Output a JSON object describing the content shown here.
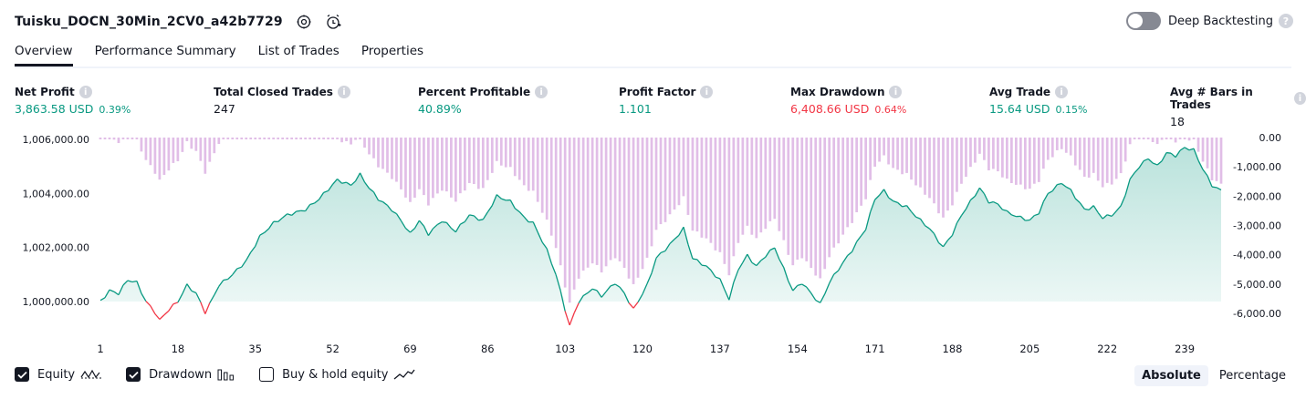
{
  "header": {
    "title": "Tuisku_DOCN_30Min_2CV0_a42b7729",
    "deep_backtesting_label": "Deep Backtesting",
    "help_glyph": "?"
  },
  "tabs": [
    {
      "label": "Overview",
      "active": true
    },
    {
      "label": "Performance Summary",
      "active": false
    },
    {
      "label": "List of Trades",
      "active": false
    },
    {
      "label": "Properties",
      "active": false
    }
  ],
  "metrics": [
    {
      "label": "Net Profit",
      "value": "3,863.58 USD",
      "pct": "0.39%",
      "color": "green"
    },
    {
      "label": "Total Closed Trades",
      "value": "247",
      "pct": "",
      "color": "dark"
    },
    {
      "label": "Percent Profitable",
      "value": "40.89%",
      "pct": "",
      "color": "green"
    },
    {
      "label": "Profit Factor",
      "value": "1.101",
      "pct": "",
      "color": "green"
    },
    {
      "label": "Max Drawdown",
      "value": "6,408.66 USD",
      "pct": "0.64%",
      "color": "red"
    },
    {
      "label": "Avg Trade",
      "value": "15.64 USD",
      "pct": "0.15%",
      "color": "green"
    },
    {
      "label": "Avg # Bars in Trades",
      "value": "18",
      "pct": "",
      "color": "dark"
    }
  ],
  "info_glyph": "i",
  "chart_data": {
    "type": "line",
    "equity_axis_labels": [
      "1,006,000.00",
      "1,004,000.00",
      "1,002,000.00",
      "1,000,000.00"
    ],
    "equity_axis_values": [
      1006000,
      1004000,
      1002000,
      1000000
    ],
    "drawdown_axis_labels": [
      "0.00",
      "-1,000.00",
      "-2,000.00",
      "-3,000.00",
      "-4,000.00",
      "-5,000.00",
      "-6,000.00"
    ],
    "drawdown_axis_values": [
      0,
      -1000,
      -2000,
      -3000,
      -4000,
      -5000,
      -6000
    ],
    "x_tick_labels": [
      "1",
      "18",
      "35",
      "52",
      "69",
      "86",
      "103",
      "120",
      "137",
      "154",
      "171",
      "188",
      "205",
      "222",
      "239"
    ],
    "x_tick_values": [
      1,
      18,
      35,
      52,
      69,
      86,
      103,
      120,
      137,
      154,
      171,
      188,
      205,
      222,
      239
    ],
    "trade_count": 247,
    "equity_keypoints": [
      [
        1,
        1000000
      ],
      [
        3,
        1000400
      ],
      [
        5,
        1000300
      ],
      [
        7,
        1000800
      ],
      [
        9,
        1000700
      ],
      [
        11,
        1000000
      ],
      [
        13,
        999600
      ],
      [
        14,
        999300
      ],
      [
        16,
        999700
      ],
      [
        18,
        1000000
      ],
      [
        20,
        1000600
      ],
      [
        22,
        1000300
      ],
      [
        24,
        999600
      ],
      [
        25,
        999900
      ],
      [
        27,
        1000600
      ],
      [
        30,
        1001000
      ],
      [
        33,
        1001500
      ],
      [
        36,
        1002400
      ],
      [
        39,
        1002900
      ],
      [
        42,
        1003200
      ],
      [
        46,
        1003400
      ],
      [
        49,
        1003800
      ],
      [
        53,
        1004500
      ],
      [
        56,
        1004300
      ],
      [
        58,
        1004700
      ],
      [
        60,
        1004200
      ],
      [
        62,
        1003800
      ],
      [
        65,
        1003400
      ],
      [
        67,
        1003000
      ],
      [
        69,
        1002500
      ],
      [
        71,
        1003000
      ],
      [
        73,
        1002500
      ],
      [
        76,
        1003000
      ],
      [
        79,
        1002600
      ],
      [
        82,
        1003200
      ],
      [
        85,
        1003000
      ],
      [
        88,
        1003900
      ],
      [
        91,
        1003700
      ],
      [
        94,
        1003100
      ],
      [
        96,
        1002900
      ],
      [
        99,
        1001900
      ],
      [
        101,
        1001000
      ],
      [
        103,
        999700
      ],
      [
        104,
        999100
      ],
      [
        106,
        1000000
      ],
      [
        109,
        1000500
      ],
      [
        111,
        1000200
      ],
      [
        114,
        1000700
      ],
      [
        116,
        1000300
      ],
      [
        118,
        999700
      ],
      [
        121,
        1000600
      ],
      [
        123,
        1001600
      ],
      [
        126,
        1002100
      ],
      [
        129,
        1002700
      ],
      [
        131,
        1001600
      ],
      [
        134,
        1001300
      ],
      [
        137,
        1000800
      ],
      [
        139,
        1000100
      ],
      [
        141,
        1001200
      ],
      [
        143,
        1001700
      ],
      [
        145,
        1001300
      ],
      [
        147,
        1001700
      ],
      [
        149,
        1002000
      ],
      [
        151,
        1001200
      ],
      [
        153,
        1000400
      ],
      [
        155,
        1000700
      ],
      [
        157,
        1000300
      ],
      [
        159,
        999900
      ],
      [
        161,
        1000700
      ],
      [
        163,
        1001200
      ],
      [
        166,
        1001900
      ],
      [
        169,
        1002700
      ],
      [
        171,
        1003800
      ],
      [
        173,
        1004100
      ],
      [
        175,
        1003700
      ],
      [
        178,
        1003500
      ],
      [
        181,
        1003000
      ],
      [
        183,
        1002700
      ],
      [
        186,
        1002000
      ],
      [
        188,
        1002500
      ],
      [
        190,
        1003200
      ],
      [
        192,
        1003700
      ],
      [
        194,
        1004200
      ],
      [
        196,
        1003700
      ],
      [
        198,
        1003600
      ],
      [
        200,
        1003300
      ],
      [
        203,
        1003100
      ],
      [
        205,
        1003000
      ],
      [
        207,
        1003300
      ],
      [
        209,
        1004000
      ],
      [
        212,
        1004400
      ],
      [
        214,
        1004100
      ],
      [
        217,
        1003400
      ],
      [
        219,
        1003500
      ],
      [
        221,
        1003100
      ],
      [
        223,
        1003200
      ],
      [
        225,
        1003500
      ],
      [
        227,
        1004500
      ],
      [
        229,
        1005000
      ],
      [
        231,
        1005300
      ],
      [
        233,
        1005000
      ],
      [
        235,
        1005500
      ],
      [
        237,
        1005400
      ],
      [
        239,
        1005700
      ],
      [
        241,
        1005600
      ],
      [
        243,
        1004900
      ],
      [
        245,
        1004300
      ],
      [
        247,
        1004100
      ]
    ],
    "series": [
      {
        "name": "Equity",
        "color": "#089981",
        "loss_color": "#f23645"
      },
      {
        "name": "Drawdown",
        "color": "#e1bee7"
      }
    ]
  },
  "legend": [
    {
      "label": "Equity",
      "checked": true,
      "icon": "equity-wave-icon"
    },
    {
      "label": "Drawdown",
      "checked": true,
      "icon": "drawdown-bars-icon"
    },
    {
      "label": "Buy & hold equity",
      "checked": false,
      "icon": "buyhold-line-icon"
    }
  ],
  "modes": [
    {
      "label": "Absolute",
      "active": true
    },
    {
      "label": "Percentage",
      "active": false
    }
  ]
}
